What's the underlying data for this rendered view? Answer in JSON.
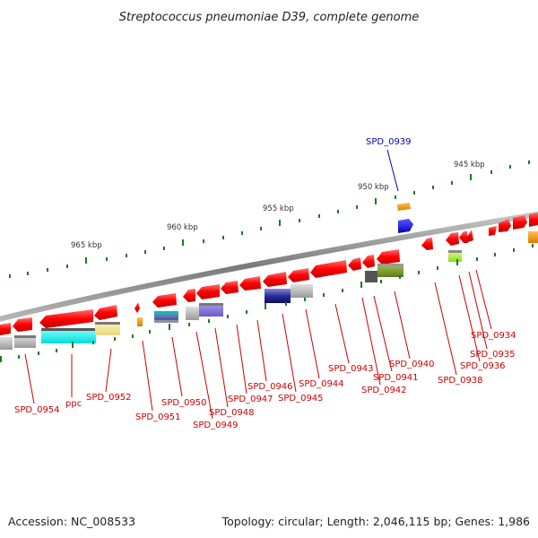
{
  "title": "Streptococcus pneumoniae D39, complete genome",
  "footer": {
    "accession": "Accession: NC_008533",
    "topology": "Topology: circular; Length: 2,046,115 bp; Genes: 1,986"
  },
  "kbp_labels": [
    "965 kbp",
    "960 kbp",
    "955 kbp",
    "950 kbp",
    "945 kbp"
  ],
  "gene_labels": [
    "SPD_0954",
    "ppc",
    "SPD_0952",
    "SPD_0951",
    "SPD_0950",
    "SPD_0949",
    "SPD_0948",
    "SPD_0947",
    "SPD_0946",
    "SPD_0945",
    "SPD_0944",
    "SPD_0943",
    "SPD_0942",
    "SPD_0941",
    "SPD_0940",
    "SPD_0938",
    "SPD_0936",
    "SPD_0935",
    "SPD_0934",
    "SPD_0939"
  ],
  "colors": {
    "gene": "#ff0000",
    "highlight": "#0000cc",
    "backbone": "#888888",
    "tick": "#1a7a1a",
    "label": "#cc0000",
    "highlight_label": "#0000bb"
  }
}
